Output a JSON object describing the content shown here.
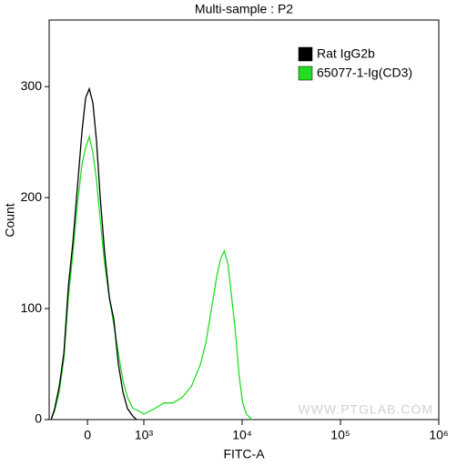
{
  "chart_data": {
    "type": "line",
    "title": "Multi-sample : P2",
    "x_label": "FITC-A",
    "y_label": "Count",
    "watermark": "WWW.PTGLAB.COM",
    "xscale": "biexponential",
    "xlim": [
      -680,
      1000000
    ],
    "ylim": [
      0,
      360
    ],
    "xticks": [
      0,
      {
        "value": 1000,
        "label": "10³"
      },
      {
        "value": 10000,
        "label": "10⁴"
      },
      {
        "value": 100000,
        "label": "10⁵"
      },
      {
        "value": 1000000,
        "label": "10⁶"
      }
    ],
    "yticks": [
      0,
      100,
      200,
      300
    ],
    "legend": "top-right",
    "series": [
      {
        "name": "Rat IgG2b",
        "color": "#000000",
        "x": [
          -645,
          -581,
          -500,
          -419,
          -339,
          -258,
          -177,
          -97,
          -32,
          32,
          97,
          161,
          226,
          306,
          387,
          468,
          548,
          629,
          710,
          806,
          871
        ],
        "values": [
          0,
          10,
          30,
          60,
          120,
          160,
          210,
          260,
          290,
          298,
          285,
          250,
          200,
          150,
          110,
          90,
          50,
          25,
          10,
          3,
          0
        ]
      },
      {
        "name": "65077-1-Ig(CD3)",
        "color": "#22dd22",
        "x": [
          -645,
          -581,
          -500,
          -419,
          -339,
          -258,
          -177,
          -97,
          -32,
          32,
          97,
          161,
          226,
          306,
          387,
          468,
          548,
          629,
          710,
          806,
          903,
          1000,
          1293,
          1602,
          1984,
          2458,
          3045,
          3774,
          4289,
          4876,
          5546,
          6045,
          6588,
          7179,
          7826,
          8530,
          9292,
          10127,
          11039,
          12534
        ],
        "values": [
          0,
          8,
          25,
          55,
          110,
          150,
          195,
          230,
          245,
          255,
          240,
          215,
          180,
          140,
          110,
          85,
          60,
          35,
          20,
          10,
          8,
          5,
          10,
          15,
          15,
          20,
          30,
          50,
          70,
          100,
          130,
          145,
          152,
          140,
          110,
          80,
          40,
          15,
          5,
          0
        ]
      }
    ]
  }
}
